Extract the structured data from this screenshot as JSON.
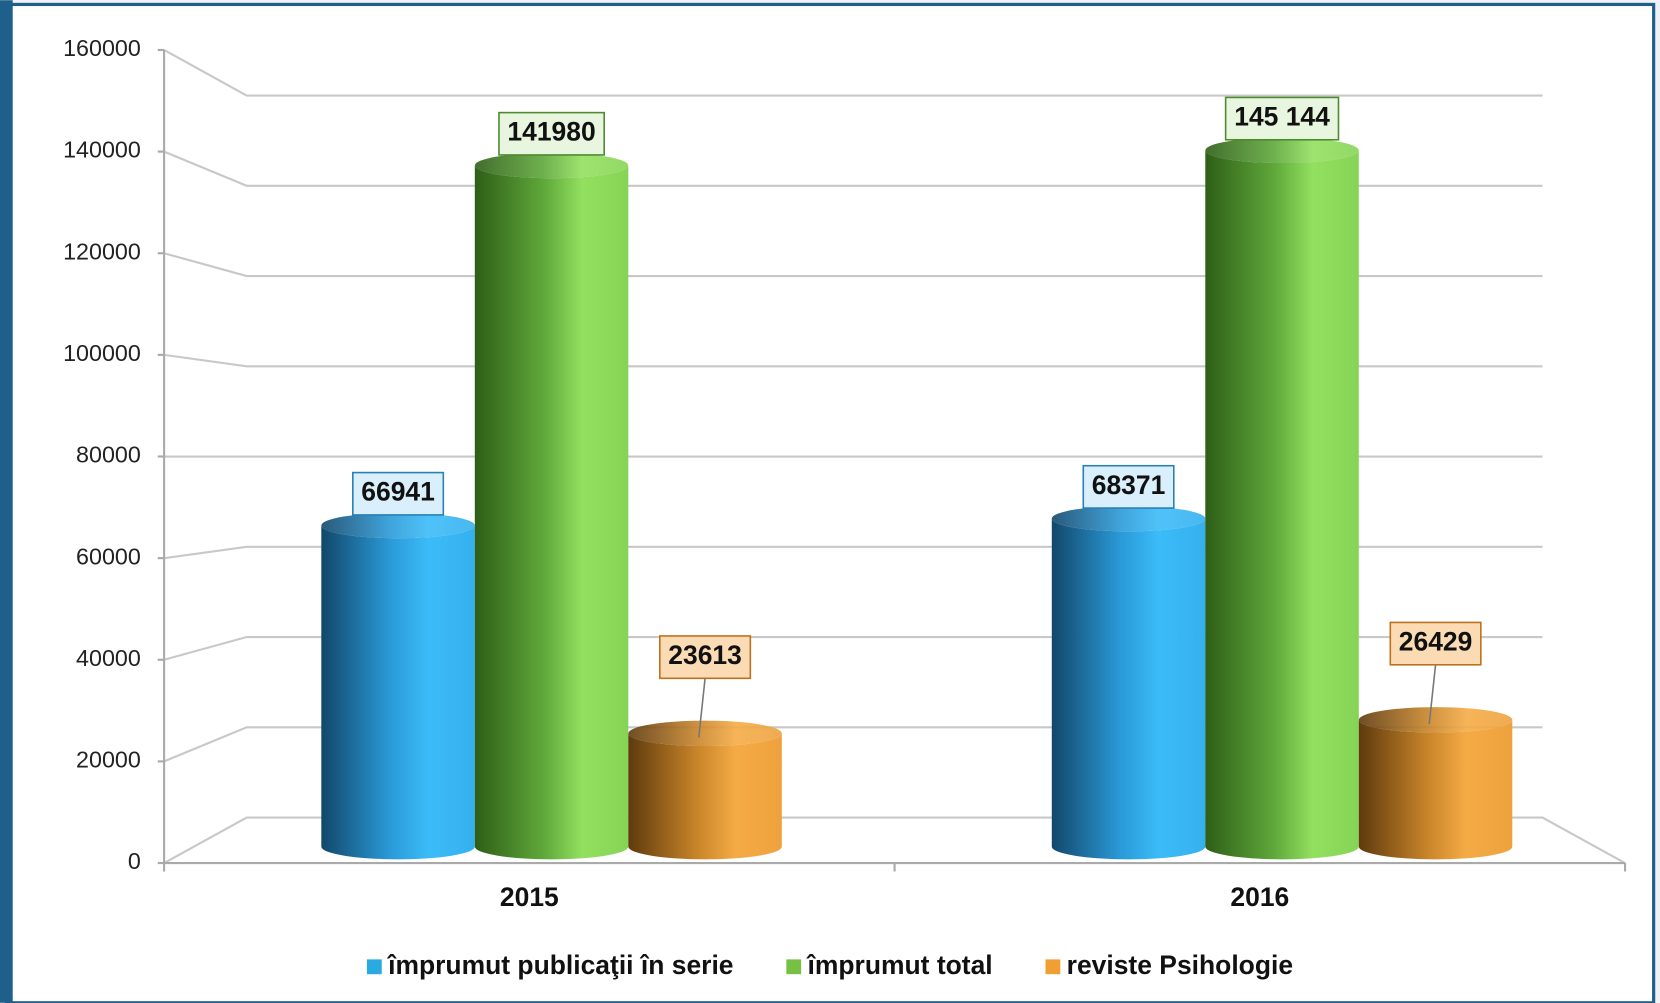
{
  "chart_data": {
    "type": "bar3d",
    "categories": [
      "2015",
      "2016"
    ],
    "series": [
      {
        "name": "împrumut publicaţii în serie",
        "color": "#29aae1",
        "values": [
          66941,
          68371
        ]
      },
      {
        "name": "împrumut total",
        "color": "#76c043",
        "values": [
          141980,
          145144
        ],
        "value_labels": [
          "141980",
          "145 144"
        ]
      },
      {
        "name": "reviste Psihologie",
        "color": "#f0a033",
        "values": [
          23613,
          26429
        ]
      }
    ],
    "ylim": [
      0,
      160000
    ],
    "yticks": [
      0,
      20000,
      40000,
      60000,
      80000,
      100000,
      120000,
      140000,
      160000
    ],
    "grid": true,
    "legend": "bottom"
  }
}
